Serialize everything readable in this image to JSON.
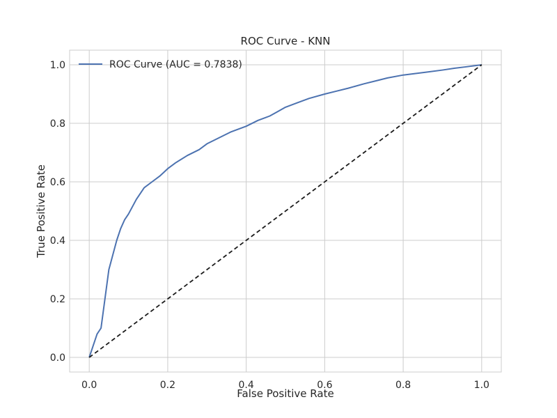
{
  "chart_data": {
    "type": "line",
    "title": "ROC Curve - KNN",
    "xlabel": "False Positive Rate",
    "ylabel": "True Positive Rate",
    "xlim": [
      -0.05,
      1.05
    ],
    "ylim": [
      -0.05,
      1.05
    ],
    "x_ticks": [
      "0.0",
      "0.2",
      "0.4",
      "0.6",
      "0.8",
      "1.0"
    ],
    "y_ticks": [
      "0.0",
      "0.2",
      "0.4",
      "0.6",
      "0.8",
      "1.0"
    ],
    "grid": true,
    "legend_position": "top-left",
    "series": [
      {
        "name": "ROC Curve (AUC = 0.7838)",
        "color": "#4c72b0",
        "style": "solid",
        "x": [
          0.0,
          0.01,
          0.02,
          0.03,
          0.04,
          0.05,
          0.06,
          0.07,
          0.08,
          0.09,
          0.1,
          0.12,
          0.14,
          0.16,
          0.18,
          0.2,
          0.22,
          0.25,
          0.28,
          0.3,
          0.33,
          0.36,
          0.4,
          0.43,
          0.46,
          0.48,
          0.5,
          0.53,
          0.56,
          0.6,
          0.63,
          0.66,
          0.7,
          0.73,
          0.76,
          0.8,
          0.83,
          0.86,
          0.9,
          0.93,
          0.96,
          1.0
        ],
        "y": [
          0.0,
          0.04,
          0.08,
          0.1,
          0.2,
          0.3,
          0.35,
          0.4,
          0.44,
          0.47,
          0.49,
          0.54,
          0.58,
          0.6,
          0.62,
          0.645,
          0.665,
          0.69,
          0.71,
          0.73,
          0.75,
          0.77,
          0.79,
          0.81,
          0.825,
          0.84,
          0.855,
          0.87,
          0.885,
          0.9,
          0.91,
          0.92,
          0.935,
          0.945,
          0.955,
          0.965,
          0.97,
          0.975,
          0.982,
          0.988,
          0.993,
          1.0
        ]
      },
      {
        "name": "",
        "color": "#1a1a1a",
        "style": "dashed",
        "x": [
          0.0,
          1.0
        ],
        "y": [
          0.0,
          1.0
        ]
      }
    ]
  }
}
